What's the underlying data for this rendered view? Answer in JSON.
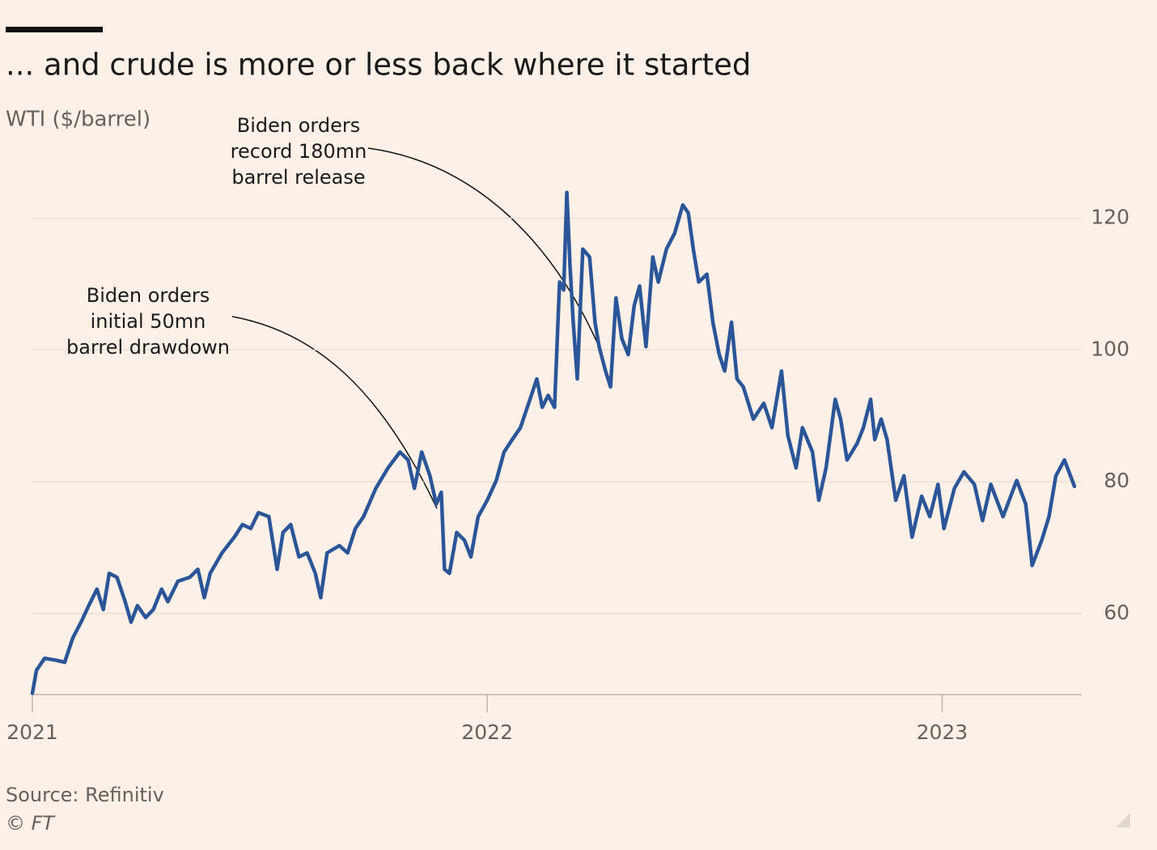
{
  "chart_data": {
    "type": "line",
    "title": "... and crude is more or less back where it started",
    "subtitle": "WTI ($/barrel)",
    "source": "Source: Refinitiv",
    "copyright": "© FT",
    "color": "#2b5597",
    "grid": true,
    "xlim": [
      2021,
      2023.307
    ],
    "xticks": [
      2021,
      2022,
      2023
    ],
    "ylim": [
      47.7,
      127
    ],
    "yticks": [
      60,
      80,
      100,
      120
    ],
    "annotations": [
      {
        "lines": [
          "Biden orders",
          "initial 50mn",
          "barrel drawdown"
        ]
      },
      {
        "lines": [
          "Biden orders",
          "record 180mn",
          "barrel release"
        ]
      }
    ],
    "x": [
      2021.0,
      2021.009,
      2021.027,
      2021.053,
      2021.071,
      2021.089,
      2021.107,
      2021.124,
      2021.142,
      2021.156,
      2021.169,
      2021.186,
      2021.204,
      2021.217,
      2021.231,
      2021.249,
      2021.266,
      2021.284,
      2021.298,
      2021.32,
      2021.346,
      2021.364,
      2021.378,
      2021.391,
      2021.417,
      2021.444,
      2021.462,
      2021.48,
      2021.497,
      2021.52,
      2021.538,
      2021.551,
      2021.568,
      2021.586,
      2021.604,
      2021.622,
      2021.634,
      2021.648,
      2021.675,
      2021.693,
      2021.71,
      2021.728,
      2021.755,
      2021.782,
      2021.808,
      2021.826,
      2021.84,
      2021.856,
      2021.874,
      2021.888,
      2021.899,
      2021.906,
      2021.917,
      2021.933,
      2021.95,
      2021.964,
      2021.98,
      2022.0,
      2022.02,
      2022.037,
      2022.055,
      2022.073,
      2022.091,
      2022.109,
      2022.121,
      2022.134,
      2022.148,
      2022.159,
      2022.168,
      2022.175,
      2022.182,
      2022.189,
      2022.198,
      2022.21,
      2022.225,
      2022.237,
      2022.246,
      2022.26,
      2022.271,
      2022.283,
      2022.296,
      2022.31,
      2022.323,
      2022.335,
      2022.349,
      2022.364,
      2022.376,
      2022.394,
      2022.412,
      2022.43,
      2022.442,
      2022.453,
      2022.465,
      2022.483,
      2022.496,
      2022.51,
      2022.522,
      2022.537,
      2022.549,
      2022.563,
      2022.585,
      2022.608,
      2022.626,
      2022.647,
      2022.661,
      2022.679,
      2022.693,
      2022.715,
      2022.729,
      2022.745,
      2022.765,
      2022.777,
      2022.791,
      2022.813,
      2022.827,
      2022.843,
      2022.852,
      2022.866,
      2022.879,
      2022.898,
      2022.916,
      2022.934,
      2022.955,
      2022.973,
      2022.991,
      2023.004,
      2023.027,
      2023.048,
      2023.071,
      2023.089,
      2023.107,
      2023.134,
      2023.164,
      2023.184,
      2023.198,
      2023.219,
      2023.235,
      2023.25,
      2023.269,
      2023.291
    ],
    "values": [
      47.9,
      51.4,
      53.2,
      52.9,
      52.6,
      56.3,
      58.7,
      61.2,
      63.7,
      60.6,
      66.1,
      65.5,
      61.8,
      58.7,
      61.2,
      59.4,
      60.6,
      63.7,
      61.8,
      64.9,
      65.5,
      66.7,
      62.4,
      66.1,
      69.2,
      71.6,
      73.5,
      72.9,
      75.3,
      74.7,
      66.7,
      72.3,
      73.5,
      68.6,
      69.2,
      66.1,
      62.4,
      69.2,
      70.3,
      69.2,
      72.9,
      74.7,
      79.0,
      82.1,
      84.5,
      83.3,
      79.0,
      84.5,
      80.9,
      76.6,
      78.4,
      66.7,
      66.1,
      72.3,
      71.1,
      68.6,
      74.7,
      77.2,
      80.2,
      84.5,
      86.4,
      88.2,
      91.9,
      95.6,
      91.3,
      93.1,
      91.3,
      110.3,
      109.1,
      123.9,
      112.8,
      104.2,
      95.6,
      115.3,
      114.1,
      104.2,
      100.5,
      96.8,
      94.4,
      107.9,
      101.7,
      99.3,
      106.7,
      109.7,
      100.5,
      114.1,
      110.3,
      115.3,
      117.7,
      122.0,
      120.8,
      115.3,
      110.3,
      111.5,
      104.2,
      99.3,
      96.8,
      104.2,
      95.6,
      94.4,
      89.5,
      91.9,
      88.2,
      96.8,
      87.0,
      82.1,
      88.2,
      84.5,
      77.2,
      82.1,
      92.5,
      89.5,
      83.3,
      85.8,
      88.2,
      92.5,
      86.4,
      89.5,
      86.4,
      77.2,
      80.9,
      71.6,
      77.8,
      74.7,
      79.6,
      72.9,
      79.0,
      81.5,
      79.6,
      74.1,
      79.6,
      74.7,
      80.2,
      76.6,
      67.3,
      71.1,
      74.7,
      80.9,
      83.3,
      79.3
    ]
  }
}
